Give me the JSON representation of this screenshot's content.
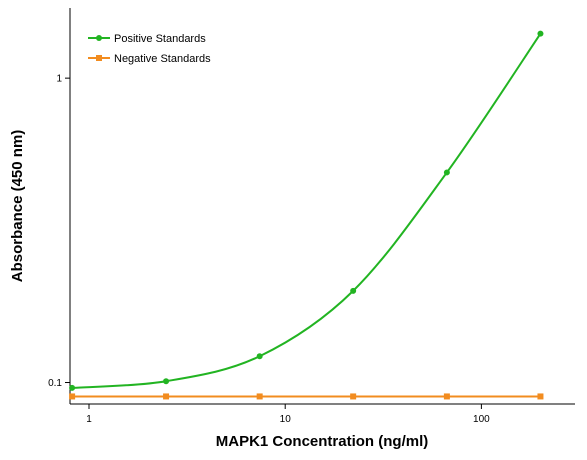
{
  "chart_data": {
    "type": "line",
    "xlabel": "MAPK1 Concentration (ng/ml)",
    "ylabel": "Absorbance (450 nm)",
    "x_scale": "log",
    "y_scale": "log",
    "xlim": [
      0.8,
      300
    ],
    "ylim": [
      0.085,
      1.7
    ],
    "x_ticks": [
      {
        "value": 1,
        "label": "1"
      },
      {
        "value": 10,
        "label": "10"
      },
      {
        "value": 100,
        "label": "100"
      }
    ],
    "y_ticks": [
      {
        "value": 0.1,
        "label": "0.1"
      },
      {
        "value": 1,
        "label": "1"
      }
    ],
    "grid": false,
    "legend_position": "top-left",
    "series": [
      {
        "name": "Positive Standards",
        "color": "#22b422",
        "marker": "circle",
        "x": [
          0.82,
          2.47,
          7.41,
          22.2,
          66.7,
          200
        ],
        "y": [
          0.096,
          0.101,
          0.122,
          0.2,
          0.49,
          1.4
        ]
      },
      {
        "name": "Negative Standards",
        "color": "#f28c1f",
        "marker": "square",
        "x": [
          0.82,
          2.47,
          7.41,
          22.2,
          66.7,
          200
        ],
        "y": [
          0.09,
          0.09,
          0.09,
          0.09,
          0.09,
          0.09
        ]
      }
    ]
  }
}
